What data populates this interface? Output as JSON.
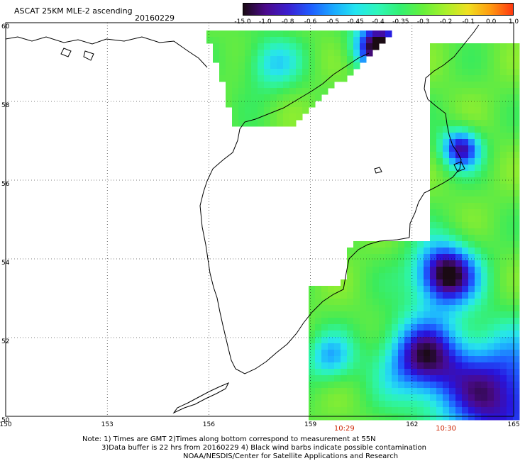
{
  "header": {
    "title": "ASCAT 25KM MLE-2 ascending",
    "date": "20160229"
  },
  "color_scale": {
    "labels": [
      "-15.0",
      "-1.0",
      "-0.8",
      "-0.6",
      "-0.5",
      "-0.45",
      "-0.4",
      "-0.35",
      "-0.3",
      "-0.2",
      "-0.1",
      "0.0",
      "1.0"
    ],
    "colors": [
      "#1a0a14",
      "#4b0a8c",
      "#3a1fd0",
      "#1f5cff",
      "#1aa8ff",
      "#22e5f0",
      "#2ef7b8",
      "#33f070",
      "#66f03a",
      "#a8f02a",
      "#f0e020",
      "#ff9a10",
      "#ff3810"
    ]
  },
  "map": {
    "lat_labels": [
      "60",
      "58",
      "56",
      "54",
      "52",
      "50"
    ],
    "lon_labels": [
      "150",
      "153",
      "156",
      "159",
      "162",
      "165"
    ],
    "pass_times": [
      {
        "label": "10:29",
        "lon": 160.0
      },
      {
        "label": "10:30",
        "lon": 163.0
      }
    ]
  },
  "footer": {
    "line1": "Note: 1) Times are GMT 2)Times along bottom correspond to measurement at 55N",
    "line2": "3)Data buffer is 22 hrs from 20160229 4) Black wind barbs indicate possible contamination",
    "line3": "NOAA/NESDIS/Center for Satellite Applications and Research"
  }
}
